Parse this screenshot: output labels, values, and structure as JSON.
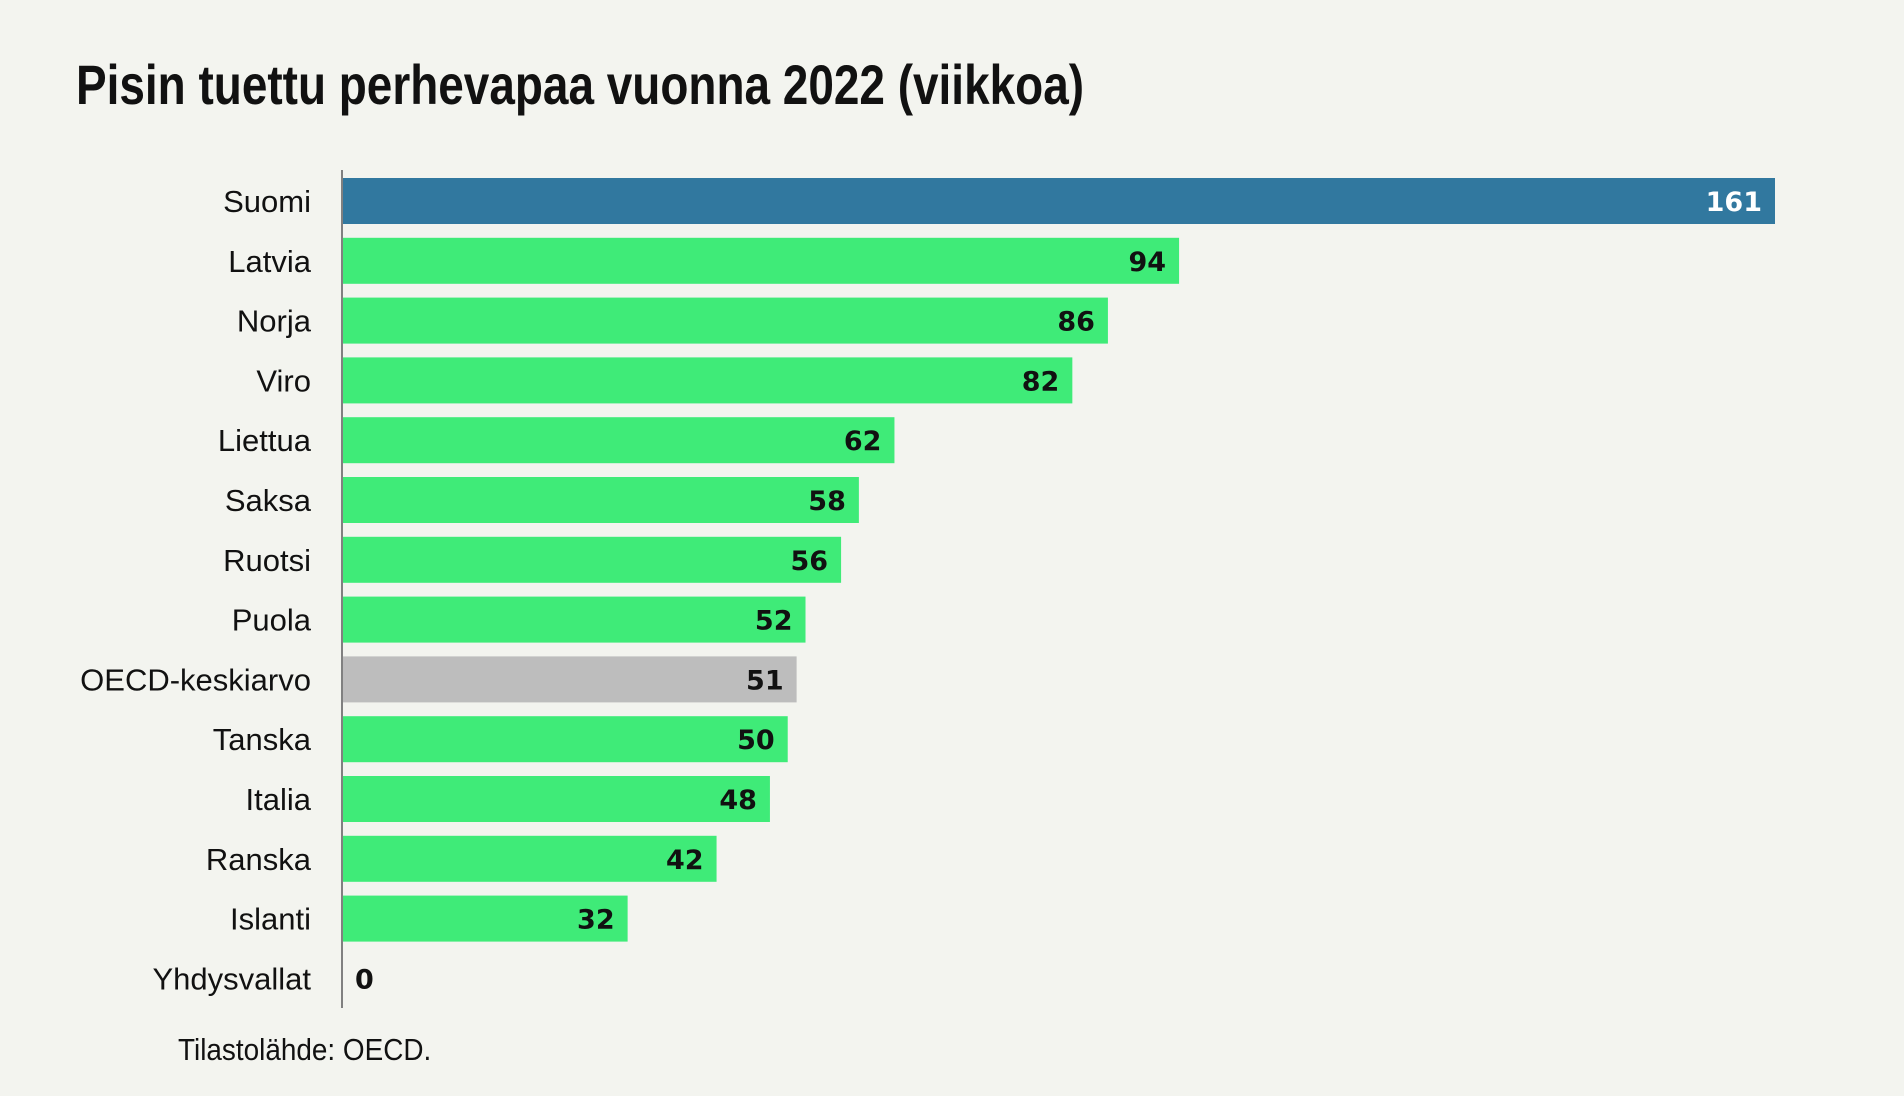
{
  "chart_data": {
    "type": "bar",
    "orientation": "horizontal",
    "title": "Pisin tuettu perhevapaa vuonna 2022 (viikkoa)",
    "categories": [
      "Suomi",
      "Latvia",
      "Norja",
      "Viro",
      "Liettua",
      "Saksa",
      "Ruotsi",
      "Puola",
      "OECD-keskiarvo",
      "Tanska",
      "Italia",
      "Ranska",
      "Islanti",
      "Yhdysvallat"
    ],
    "values": [
      161,
      94,
      86,
      82,
      62,
      58,
      56,
      52,
      51,
      50,
      48,
      42,
      32,
      0
    ],
    "highlight": {
      "Suomi": "#31789f",
      "OECD-keskiarvo": "#bdbdbd"
    },
    "default_color": "#3feb78",
    "xlim": [
      0,
      161
    ],
    "grid": false,
    "xlabel": "",
    "ylabel": "",
    "source": "Tilastolähde: OECD."
  }
}
